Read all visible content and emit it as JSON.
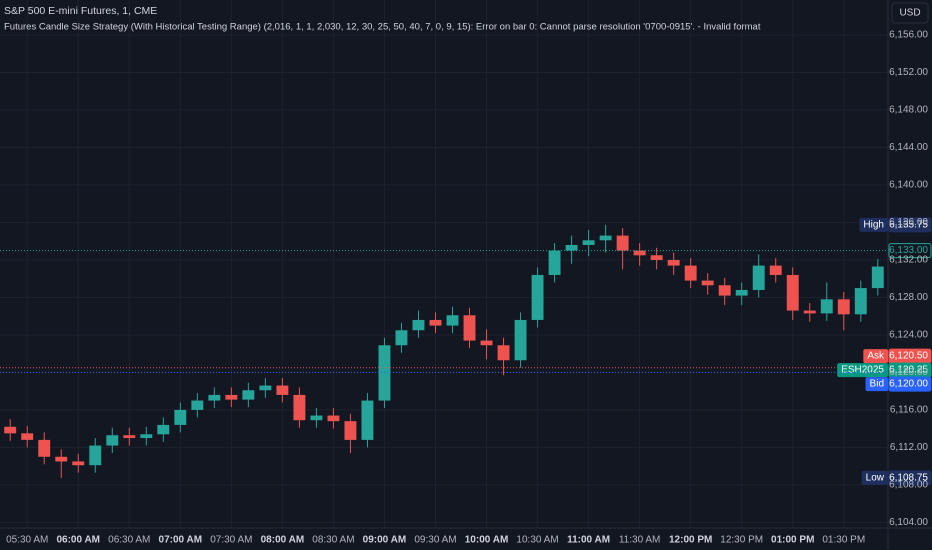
{
  "chart_data": {
    "type": "candlestick",
    "title": "S&P 500 E-mini Futures, 1, CME",
    "subtitle": "Futures Candle Size Strategy (With Historical Testing Range) (2,016, 1, 1, 2,030, 12, 30, 25, 50, 40, 7, 0, 9, 15): Error on bar 0: Cannot parse resolution '0700-0915'. - Invalid format",
    "currency": "USD",
    "up_color": "#26a69a",
    "down_color": "#ef5350",
    "grid": true,
    "x": [
      "05:20",
      "05:30",
      "05:40",
      "05:50",
      "06:00",
      "06:10",
      "06:20",
      "06:30",
      "06:40",
      "06:50",
      "07:00",
      "07:10",
      "07:20",
      "07:30",
      "07:40",
      "07:50",
      "08:00",
      "08:10",
      "08:20",
      "08:30",
      "08:40",
      "08:50",
      "09:00",
      "09:10",
      "09:20",
      "09:30",
      "09:40",
      "09:50",
      "10:00",
      "10:10",
      "10:20",
      "10:30",
      "10:40",
      "10:50",
      "11:00",
      "11:10",
      "11:20",
      "11:30",
      "11:40",
      "11:50",
      "12:00",
      "12:10",
      "12:20",
      "12:30",
      "12:40",
      "12:50",
      "13:00",
      "13:10",
      "13:20",
      "13:30",
      "13:40",
      "13:50"
    ],
    "open": [
      6114.2,
      6113.5,
      6112.8,
      6111.0,
      6110.5,
      6110.1,
      6112.2,
      6113.3,
      6113.0,
      6113.4,
      6114.4,
      6116.0,
      6117.0,
      6117.6,
      6117.1,
      6118.1,
      6118.6,
      6117.6,
      6114.9,
      6115.4,
      6114.8,
      6112.8,
      6117.0,
      6122.9,
      6124.5,
      6125.6,
      6125.0,
      6126.1,
      6123.4,
      6122.9,
      6121.3,
      6125.6,
      6130.4,
      6133.0,
      6133.6,
      6134.1,
      6134.6,
      6133.0,
      6132.5,
      6132.0,
      6131.4,
      6129.8,
      6129.3,
      6128.2,
      6128.8,
      6131.4,
      6130.4,
      6126.6,
      6126.3,
      6127.8,
      6126.2,
      6129.0
    ],
    "high": [
      6115.0,
      6114.3,
      6113.6,
      6111.8,
      6111.3,
      6113.0,
      6114.1,
      6114.1,
      6114.2,
      6115.2,
      6116.8,
      6117.8,
      6118.4,
      6118.4,
      6118.9,
      6119.4,
      6119.4,
      6118.4,
      6116.2,
      6116.2,
      6115.6,
      6117.8,
      6123.7,
      6125.3,
      6126.6,
      6126.4,
      6127.0,
      6126.9,
      6124.6,
      6123.7,
      6126.4,
      6131.2,
      6133.8,
      6134.6,
      6135.2,
      6135.75,
      6135.4,
      6133.8,
      6133.3,
      6132.8,
      6132.2,
      6130.6,
      6130.1,
      6129.6,
      6132.6,
      6132.2,
      6131.2,
      6127.4,
      6129.6,
      6128.6,
      6129.8,
      6132.1
    ],
    "low": [
      6112.7,
      6112.0,
      6110.2,
      6108.75,
      6109.3,
      6109.3,
      6111.4,
      6112.2,
      6112.2,
      6112.6,
      6113.6,
      6115.2,
      6116.2,
      6116.3,
      6116.3,
      6117.3,
      6116.8,
      6114.1,
      6114.1,
      6114.0,
      6111.4,
      6112.0,
      6116.2,
      6122.1,
      6123.7,
      6124.2,
      6124.2,
      6122.6,
      6121.4,
      6119.7,
      6120.5,
      6124.8,
      6129.6,
      6131.6,
      6132.4,
      6132.8,
      6131.0,
      6131.4,
      6131.0,
      6130.4,
      6129.0,
      6128.3,
      6127.2,
      6127.2,
      6128.0,
      6129.6,
      6125.6,
      6125.4,
      6125.5,
      6124.5,
      6125.4,
      6128.2
    ],
    "close": [
      6113.5,
      6112.8,
      6111.0,
      6110.5,
      6110.1,
      6112.2,
      6113.3,
      6113.0,
      6113.4,
      6114.4,
      6116.0,
      6117.0,
      6117.6,
      6117.1,
      6118.1,
      6118.6,
      6117.6,
      6114.9,
      6115.4,
      6114.8,
      6112.8,
      6117.0,
      6122.9,
      6124.5,
      6125.6,
      6125.0,
      6126.1,
      6123.4,
      6122.9,
      6121.3,
      6125.6,
      6130.4,
      6133.0,
      6133.6,
      6134.1,
      6134.6,
      6133.0,
      6132.5,
      6132.0,
      6131.4,
      6129.8,
      6129.3,
      6128.2,
      6128.8,
      6131.4,
      6130.4,
      6126.6,
      6126.3,
      6127.8,
      6126.2,
      6129.0,
      6131.3
    ],
    "xlim": [
      "05:14",
      "13:56"
    ],
    "xticks": [
      {
        "value": "05:30",
        "label": "05:30 AM"
      },
      {
        "value": "06:00",
        "label": "06:00 AM"
      },
      {
        "value": "06:30",
        "label": "06:30 AM"
      },
      {
        "value": "07:00",
        "label": "07:00 AM"
      },
      {
        "value": "07:30",
        "label": "07:30 AM"
      },
      {
        "value": "08:00",
        "label": "08:00 AM"
      },
      {
        "value": "08:30",
        "label": "08:30 AM"
      },
      {
        "value": "09:00",
        "label": "09:00 AM"
      },
      {
        "value": "09:30",
        "label": "09:30 AM"
      },
      {
        "value": "10:00",
        "label": "10:00 AM"
      },
      {
        "value": "10:30",
        "label": "10:30 AM"
      },
      {
        "value": "11:00",
        "label": "11:00 AM"
      },
      {
        "value": "11:30",
        "label": "11:30 AM"
      },
      {
        "value": "12:00",
        "label": "12:00 PM"
      },
      {
        "value": "12:30",
        "label": "12:30 PM"
      },
      {
        "value": "13:00",
        "label": "01:00 PM"
      },
      {
        "value": "13:30",
        "label": "01:30 PM"
      }
    ],
    "ylim": [
      6103.4,
      6159.74
    ],
    "yticks": [
      {
        "value": 6104,
        "label": "6,104.00"
      },
      {
        "value": 6108,
        "label": "6,108.00"
      },
      {
        "value": 6112,
        "label": "6,112.00"
      },
      {
        "value": 6116,
        "label": "6,116.00"
      },
      {
        "value": 6120,
        "label": "6,120.00"
      },
      {
        "value": 6124,
        "label": "6,124.00"
      },
      {
        "value": 6128,
        "label": "6,128.00"
      },
      {
        "value": 6132,
        "label": "6,132.00"
      },
      {
        "value": 6136,
        "label": "6,136.00"
      },
      {
        "value": 6140,
        "label": "6,140.00"
      },
      {
        "value": 6144,
        "label": "6,144.00"
      },
      {
        "value": 6148,
        "label": "6,148.00"
      },
      {
        "value": 6152,
        "label": "6,152.00"
      },
      {
        "value": 6156,
        "label": "6,156.00"
      }
    ],
    "price_tags": [
      {
        "name": "High",
        "value": 6135.75,
        "label": "6,135.75",
        "color": "#1e2f5e"
      },
      {
        "value": 6133.0,
        "label": "6,133.00",
        "color": "#26a69a",
        "outline": true
      },
      {
        "name": "Ask",
        "value": 6120.5,
        "label": "6,120.50",
        "color": "#ef5350",
        "line": true
      },
      {
        "name": "ESH2025",
        "value": 6120.25,
        "label": "6,120.25",
        "color": "#089981"
      },
      {
        "name": "Bid",
        "value": 6120.0,
        "label": "6,120.00",
        "color": "#2962ff",
        "line": true
      },
      {
        "name": "Low",
        "value": 6108.75,
        "label": "6,108.75",
        "color": "#1e2f5e"
      }
    ]
  }
}
